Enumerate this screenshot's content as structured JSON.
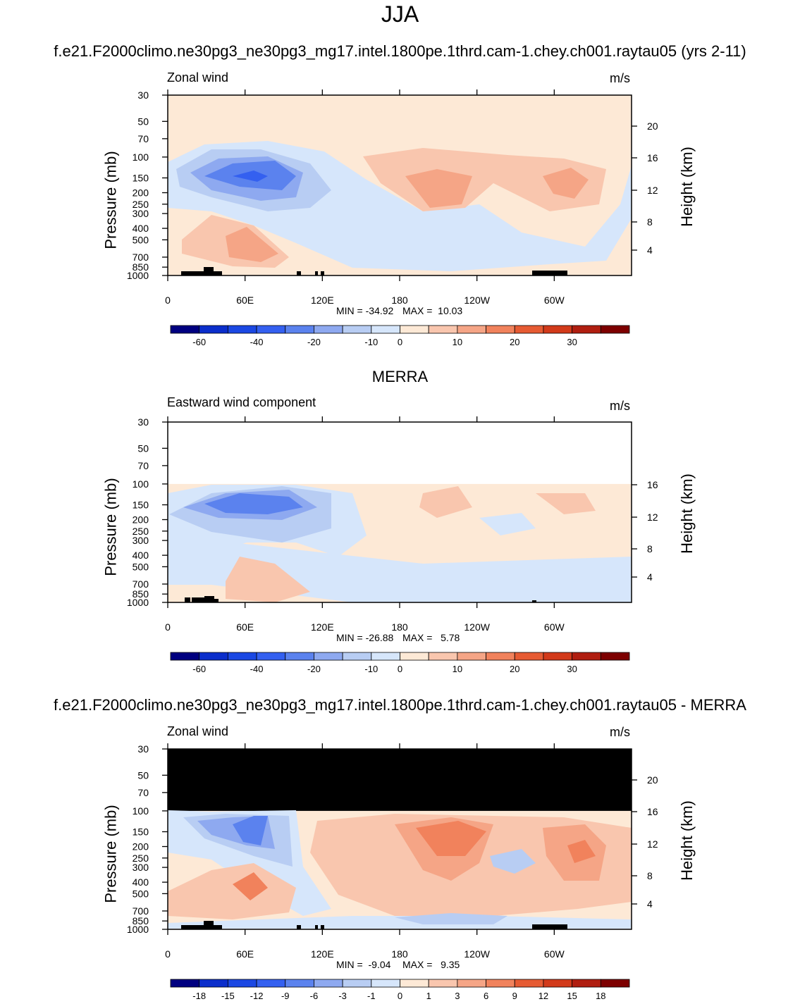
{
  "figure": {
    "title": "JJA"
  },
  "colors": {
    "frame": "#000000",
    "missing": "#ffffff",
    "mask": "#000000"
  },
  "chart_data": [
    {
      "type": "heatmap",
      "panel": "model",
      "title": "f.e21.F2000climo.ne30pg3_ne30pg3_mg17.intel.1800pe.1thrd.cam-1.chey.ch001.raytau05 (yrs 2-11)",
      "label": "Zonal wind",
      "units": "m/s",
      "ylabel": "Pressure (mb)",
      "ylabel_right": "Height (km)",
      "pressure_ticks": [
        "30",
        "50",
        "70",
        "100",
        "150",
        "200",
        "250",
        "300",
        "400",
        "500",
        "700",
        "850",
        "1000"
      ],
      "height_ticks": [
        "20",
        "16",
        "12",
        "8",
        "4"
      ],
      "lon_ticks": [
        "0",
        "60E",
        "120E",
        "180",
        "120W",
        "60W"
      ],
      "ylim": [
        1000,
        30
      ],
      "xlim": [
        0,
        360
      ],
      "min_text": "MIN = -34.92",
      "max_text": "MAX =  10.03",
      "colorbar": {
        "ticks": [
          "-60",
          "-40",
          "-20",
          "-10",
          "0",
          "10",
          "20",
          "30"
        ],
        "colors": [
          "#000080",
          "#0b2ecb",
          "#1b48e3",
          "#3460f0",
          "#5b82ee",
          "#8ea9f0",
          "#b8cdf3",
          "#d6e6fb",
          "#fde9d6",
          "#f9c6ae",
          "#f5a586",
          "#f1825c",
          "#e65b33",
          "#d23a1a",
          "#b01e10",
          "#7d0000"
        ]
      }
    },
    {
      "type": "heatmap",
      "panel": "obs",
      "title": "MERRA",
      "label": "Eastward wind component",
      "units": "m/s",
      "ylabel": "Pressure (mb)",
      "ylabel_right": "Height (km)",
      "pressure_ticks": [
        "30",
        "50",
        "70",
        "100",
        "150",
        "200",
        "250",
        "300",
        "400",
        "500",
        "700",
        "850",
        "1000"
      ],
      "height_ticks": [
        "16",
        "12",
        "8",
        "4"
      ],
      "lon_ticks": [
        "0",
        "60E",
        "120E",
        "180",
        "120W",
        "60W"
      ],
      "ylim": [
        1000,
        30
      ],
      "xlim": [
        0,
        360
      ],
      "min_text": "MIN = -26.88",
      "max_text": "MAX =   5.78",
      "colorbar": {
        "ticks": [
          "-60",
          "-40",
          "-20",
          "-10",
          "0",
          "10",
          "20",
          "30"
        ],
        "colors": [
          "#000080",
          "#0b2ecb",
          "#1b48e3",
          "#3460f0",
          "#5b82ee",
          "#8ea9f0",
          "#b8cdf3",
          "#d6e6fb",
          "#fde9d6",
          "#f9c6ae",
          "#f5a586",
          "#f1825c",
          "#e65b33",
          "#d23a1a",
          "#b01e10",
          "#7d0000"
        ]
      }
    },
    {
      "type": "heatmap",
      "panel": "diff",
      "title": "f.e21.F2000climo.ne30pg3_ne30pg3_mg17.intel.1800pe.1thrd.cam-1.chey.ch001.raytau05 - MERRA",
      "label": "Zonal wind",
      "units": "m/s",
      "ylabel": "Pressure (mb)",
      "ylabel_right": "Height (km)",
      "pressure_ticks": [
        "30",
        "50",
        "70",
        "100",
        "150",
        "200",
        "250",
        "300",
        "400",
        "500",
        "700",
        "850",
        "1000"
      ],
      "height_ticks": [
        "20",
        "16",
        "12",
        "8",
        "4"
      ],
      "lon_ticks": [
        "0",
        "60E",
        "120E",
        "180",
        "120W",
        "60W"
      ],
      "ylim": [
        1000,
        30
      ],
      "xlim": [
        0,
        360
      ],
      "min_text": "MIN =  -9.04",
      "max_text": "MAX =   9.35",
      "colorbar": {
        "ticks": [
          "-18",
          "-15",
          "-12",
          "-9",
          "-6",
          "-3",
          "-1",
          "0",
          "1",
          "3",
          "6",
          "9",
          "12",
          "15",
          "18"
        ],
        "colors": [
          "#000080",
          "#0b2ecb",
          "#1b48e3",
          "#3460f0",
          "#5b82ee",
          "#8ea9f0",
          "#b8cdf3",
          "#d6e6fb",
          "#fde9d6",
          "#f9c6ae",
          "#f5a586",
          "#f1825c",
          "#e65b33",
          "#d23a1a",
          "#b01e10",
          "#7d0000"
        ]
      }
    }
  ]
}
